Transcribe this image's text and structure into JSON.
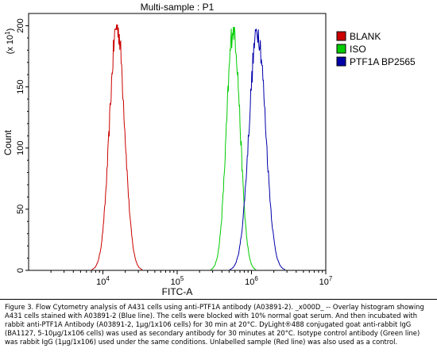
{
  "chart_data": {
    "type": "line",
    "title": "Multi-sample : P1",
    "xlabel": "FITC-A",
    "ylabel": "Count",
    "y_multiplier_label": "(x 10",
    "y_multiplier_exp": "1",
    "x_scale": "log",
    "xlim": [
      1000,
      10000000
    ],
    "ylim": [
      0,
      210
    ],
    "x_ticks": [
      {
        "value": 10000,
        "base": "10",
        "exp": "4"
      },
      {
        "value": 100000,
        "base": "10",
        "exp": "5"
      },
      {
        "value": 1000000,
        "base": "10",
        "exp": "6"
      },
      {
        "value": 10000000,
        "base": "10",
        "exp": "7"
      }
    ],
    "y_ticks": [
      {
        "value": 0,
        "label": "0"
      },
      {
        "value": 50,
        "label": "50"
      },
      {
        "value": 100,
        "label": "100"
      },
      {
        "value": 150,
        "label": "150"
      },
      {
        "value": 200,
        "label": "200"
      }
    ],
    "legend_position": "top-right",
    "series": [
      {
        "name": "BLANK",
        "color": "#cc0000",
        "center": 15500,
        "peak": 201,
        "width_decades": 0.1
      },
      {
        "name": "ISO",
        "color": "#00cc00",
        "center": 570000,
        "peak": 199,
        "width_decades": 0.09
      },
      {
        "name": "PTF1A BP2565",
        "color": "#0000aa",
        "center": 1200000,
        "peak": 197,
        "width_decades": 0.11
      }
    ]
  },
  "caption": "Figure 3. Flow Cytometry analysis of A431 cells using anti-PTF1A antibody (A03891-2). _x000D_ -- Overlay histogram showing A431 cells stained with A03891-2 (Blue line). The cells were blocked with 10% normal goat serum. And then incubated with rabbit anti-PTF1A Antibody (A03891-2, 1µg/1x106 cells) for 30 min at 20°C. DyLight®488 conjugated goat anti-rabbit IgG (BA1127, 5-10µg/1x106 cells) was used as secondary antibody for 30 minutes at 20°C. Isotype control antibody (Green line) was rabbit IgG (1µg/1x106) used under the same conditions. Unlabelled sample (Red line) was also used as a control."
}
